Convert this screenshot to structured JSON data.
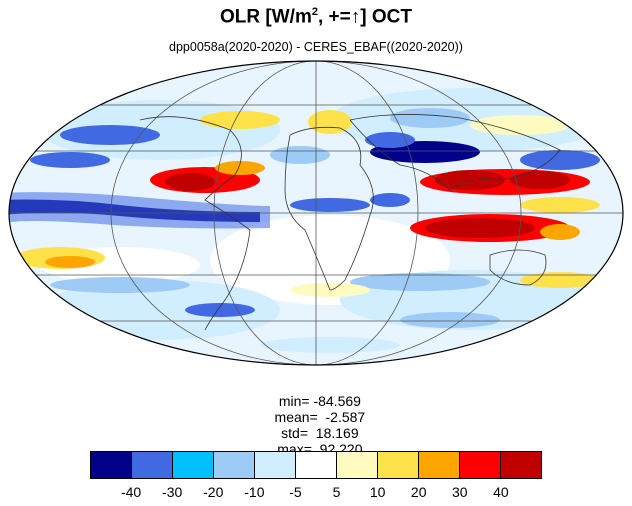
{
  "title": {
    "main": "OLR [W/m",
    "sup": "2",
    "rest": ", +=↑] OCT"
  },
  "subtitle": "dpp0058a(2020-2020) - CERES_EBAF((2020-2020))",
  "stats": {
    "min": "min= -84.569",
    "mean": "mean=  -2.587",
    "std": "std=  18.169",
    "max": "max=  92.220"
  },
  "colorbar": {
    "colors": [
      "#00008b",
      "#4169e1",
      "#00bfff",
      "#9ecbf5",
      "#d0eeff",
      "#ffffff",
      "#fffbc0",
      "#ffe14a",
      "#ffa500",
      "#ff0000",
      "#c00000"
    ],
    "ticks": [
      "-40",
      "-30",
      "-20",
      "-10",
      "-5",
      "5",
      "10",
      "20",
      "30",
      "40"
    ]
  },
  "anomaly_regions": [
    {
      "label": "tropical-pacific-negative",
      "color": "#00008b"
    },
    {
      "label": "maritime-continent-positive",
      "color": "#c00000"
    },
    {
      "label": "central-america-positive",
      "color": "#c00000"
    },
    {
      "label": "arabia-negative",
      "color": "#00008b"
    }
  ]
}
